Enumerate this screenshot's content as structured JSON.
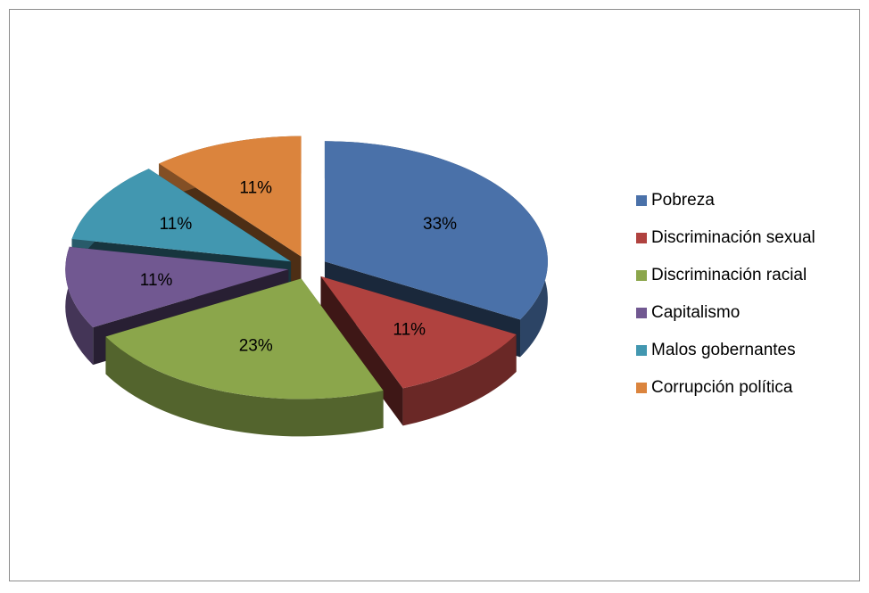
{
  "chart_data": {
    "type": "pie",
    "categories": [
      "Pobreza",
      "Discriminación sexual",
      "Discriminación racial",
      "Capitalismo",
      "Malos gobernantes",
      "Corrupción política"
    ],
    "values": [
      33,
      11,
      23,
      11,
      11,
      11
    ],
    "value_labels": [
      "33%",
      "11%",
      "23%",
      "11%",
      "11%",
      "11%"
    ],
    "colors": [
      "#4a71a9",
      "#b0423f",
      "#8ba64b",
      "#715891",
      "#4297b0",
      "#db843d"
    ],
    "legend": "right"
  }
}
